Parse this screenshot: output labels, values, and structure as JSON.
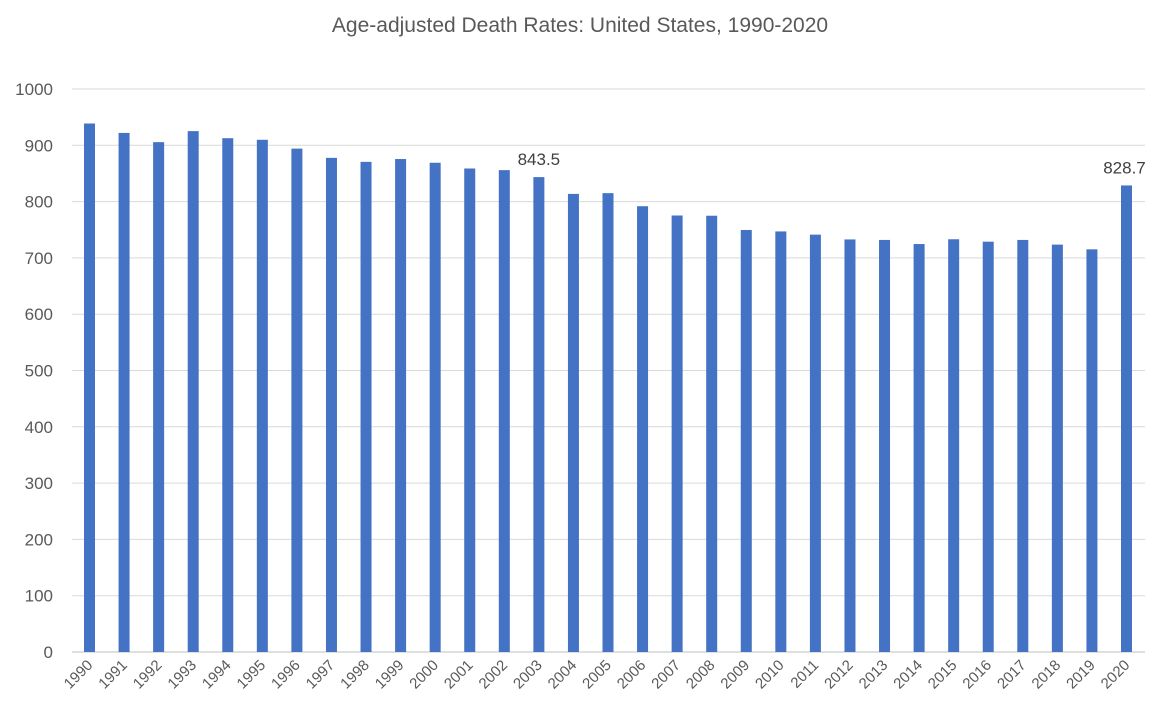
{
  "chart_data": {
    "type": "bar",
    "title": "Age-adjusted Death Rates: United States, 1990-2020",
    "xlabel": "",
    "ylabel": "",
    "ylim": [
      0,
      1000
    ],
    "yticks": [
      0,
      100,
      200,
      300,
      400,
      500,
      600,
      700,
      800,
      900,
      1000
    ],
    "grid": true,
    "bar_color": "#4472c4",
    "categories": [
      "1990",
      "1991",
      "1992",
      "1993",
      "1994",
      "1995",
      "1996",
      "1997",
      "1998",
      "1999",
      "2000",
      "2001",
      "2002",
      "2003",
      "2004",
      "2005",
      "2006",
      "2007",
      "2008",
      "2009",
      "2010",
      "2011",
      "2012",
      "2013",
      "2014",
      "2015",
      "2016",
      "2017",
      "2018",
      "2019",
      "2020"
    ],
    "values": [
      938.7,
      922.0,
      905.6,
      925.2,
      912.6,
      909.8,
      894.1,
      877.7,
      870.6,
      875.6,
      869.0,
      858.8,
      855.9,
      843.5,
      813.7,
      815.0,
      791.8,
      775.3,
      774.9,
      749.6,
      747.0,
      741.3,
      732.8,
      731.9,
      724.6,
      733.1,
      728.8,
      731.9,
      723.6,
      715.2,
      828.7
    ],
    "data_labels": [
      {
        "category": "2003",
        "text": "843.5"
      },
      {
        "category": "2020",
        "text": "828.7"
      }
    ]
  }
}
